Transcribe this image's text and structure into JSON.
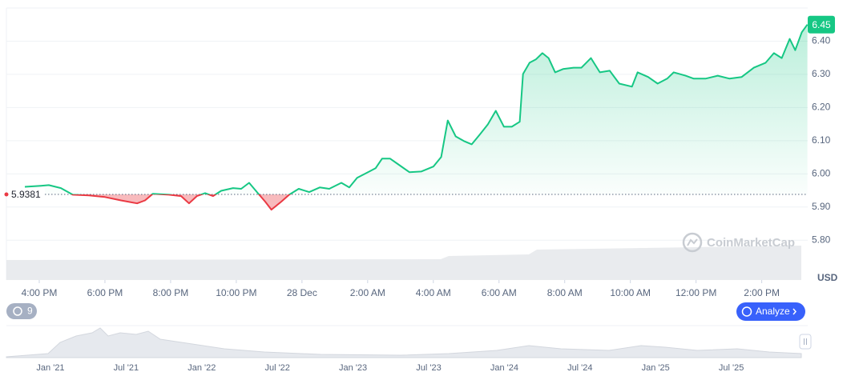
{
  "chart_data": {
    "type": "line",
    "x": [
      15.56,
      16.05,
      16.29,
      16.66,
      17.02,
      17.51,
      18.0,
      18.49,
      18.98,
      19.22,
      19.46,
      19.95,
      20.32,
      20.56,
      20.8,
      21.05,
      21.29,
      21.54,
      21.9,
      22.15,
      22.39,
      22.63,
      22.88,
      23.07,
      23.37,
      23.61,
      23.9,
      24.22,
      24.54,
      24.83,
      25.2,
      25.44,
      25.68,
      26.05,
      26.24,
      26.44,
      26.68,
      26.9,
      27.27,
      27.63,
      28.0,
      28.24,
      28.44,
      28.68,
      28.93,
      29.17,
      29.41,
      29.66,
      29.9,
      30.15,
      30.39,
      30.63,
      30.73,
      30.93,
      31.12,
      31.32,
      31.51,
      31.71,
      31.95,
      32.27,
      32.51,
      32.8,
      33.07,
      33.37,
      33.66,
      34.05,
      34.22,
      34.54,
      34.83,
      35.12,
      35.32,
      35.68,
      35.93,
      36.29,
      36.66,
      37.02,
      37.39,
      37.76,
      38.12,
      38.37,
      38.61,
      38.85,
      39.02,
      39.22,
      39.39
    ],
    "values": [
      5.961,
      5.964,
      5.966,
      5.957,
      5.937,
      5.935,
      5.93,
      5.92,
      5.911,
      5.92,
      5.94,
      5.937,
      5.933,
      5.911,
      5.933,
      5.942,
      5.933,
      5.949,
      5.957,
      5.955,
      5.973,
      5.945,
      5.916,
      5.892,
      5.916,
      5.937,
      5.955,
      5.945,
      5.959,
      5.955,
      5.973,
      5.959,
      5.988,
      6.007,
      6.017,
      6.046,
      6.046,
      6.031,
      6.005,
      6.007,
      6.022,
      6.051,
      6.161,
      6.113,
      6.099,
      6.089,
      6.118,
      6.149,
      6.19,
      6.142,
      6.142,
      6.157,
      6.301,
      6.335,
      6.345,
      6.364,
      6.349,
      6.306,
      6.316,
      6.32,
      6.32,
      6.349,
      6.306,
      6.311,
      6.272,
      6.263,
      6.306,
      6.292,
      6.272,
      6.287,
      6.306,
      6.296,
      6.287,
      6.287,
      6.296,
      6.287,
      6.292,
      6.32,
      6.335,
      6.364,
      6.349,
      6.407,
      6.373,
      6.427,
      6.45
    ],
    "up_color": "#16c784",
    "down_color": "#ea3943",
    "xlim": [
      15.0,
      39.4
    ],
    "xticks": [
      {
        "value": 16,
        "label": "4:00 PM"
      },
      {
        "value": 18,
        "label": "6:00 PM"
      },
      {
        "value": 20,
        "label": "8:00 PM"
      },
      {
        "value": 22,
        "label": "10:00 PM"
      },
      {
        "value": 24,
        "label": "28 Dec"
      },
      {
        "value": 26,
        "label": "2:00 AM"
      },
      {
        "value": 28,
        "label": "4:00 AM"
      },
      {
        "value": 30,
        "label": "6:00 AM"
      },
      {
        "value": 32,
        "label": "8:00 AM"
      },
      {
        "value": 34,
        "label": "10:00 AM"
      },
      {
        "value": 36,
        "label": "12:00 PM"
      },
      {
        "value": 38,
        "label": "2:00 PM"
      }
    ],
    "ylim": [
      5.68,
      6.5
    ],
    "yticks": [
      {
        "value": 5.8,
        "label": "5.80"
      },
      {
        "value": 5.9,
        "label": "5.90"
      },
      {
        "value": 6.0,
        "label": "6.00"
      },
      {
        "value": 6.1,
        "label": "6.10"
      },
      {
        "value": 6.2,
        "label": "6.20"
      },
      {
        "value": 6.3,
        "label": "6.30"
      },
      {
        "value": 6.4,
        "label": "6.40"
      }
    ],
    "grid": true,
    "baseline": {
      "value": 5.9381,
      "label": "5.9381"
    },
    "current_price": {
      "value": 6.45,
      "label": "6.45"
    },
    "y_unit": "USD",
    "watermark": "CoinMarketCap",
    "badge": "9",
    "button": "Analyze",
    "navigator_labels": [
      "Jan '21",
      "Jul '21",
      "Jan '22",
      "Jul '22",
      "Jan '23",
      "Jul '23",
      "Jan '24",
      "Jul '24",
      "Jan '25",
      "Jul '25"
    ]
  }
}
